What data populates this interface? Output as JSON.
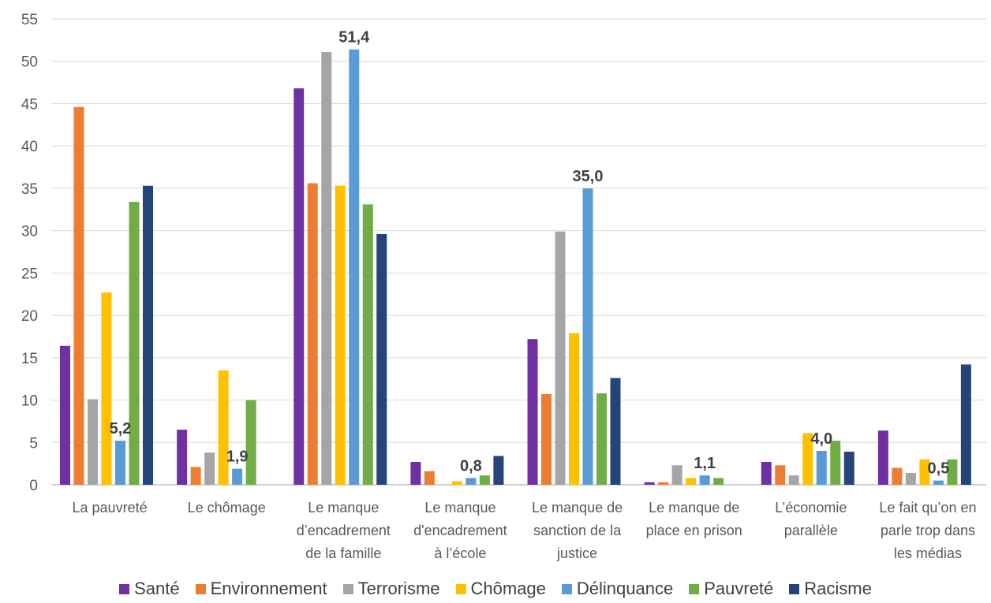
{
  "chart_data": {
    "type": "bar",
    "ylim": [
      0,
      55
    ],
    "yticks": [
      0,
      5,
      10,
      15,
      20,
      25,
      30,
      35,
      40,
      45,
      50,
      55
    ],
    "grid": true,
    "legend_position": "bottom",
    "categories": [
      [
        "La pauvreté"
      ],
      [
        "Le chômage"
      ],
      [
        "Le manque",
        "d’encadrement",
        "de la famille"
      ],
      [
        "Le manque",
        "d'encadrement",
        "à l’école"
      ],
      [
        "Le manque de",
        "sanction de la",
        "justice"
      ],
      [
        "Le manque de",
        "place en prison"
      ],
      [
        "L’économie",
        "parallèle"
      ],
      [
        "Le fait qu’on en",
        "parle trop dans",
        "les médias"
      ]
    ],
    "series": [
      {
        "name": "Santé",
        "color": "#7030A0",
        "values": [
          16.4,
          6.5,
          46.8,
          2.7,
          17.2,
          0.3,
          2.7,
          6.4
        ]
      },
      {
        "name": "Environnement",
        "color": "#ED7D31",
        "values": [
          44.6,
          2.1,
          35.6,
          1.6,
          10.7,
          0.3,
          2.3,
          2.0
        ]
      },
      {
        "name": "Terrorisme",
        "color": "#A5A5A5",
        "values": [
          10.1,
          3.8,
          51.1,
          0.0,
          29.9,
          2.3,
          1.1,
          1.4
        ]
      },
      {
        "name": "Chômage",
        "color": "#FFC000",
        "values": [
          22.7,
          13.5,
          35.3,
          0.4,
          17.9,
          0.8,
          6.1,
          3.0
        ]
      },
      {
        "name": "Délinquance",
        "color": "#5B9BD5",
        "values": [
          5.2,
          1.9,
          51.4,
          0.8,
          35.0,
          1.1,
          4.0,
          0.5
        ]
      },
      {
        "name": "Pauvreté",
        "color": "#70AD47",
        "values": [
          33.4,
          10.0,
          33.1,
          1.1,
          10.8,
          0.8,
          5.2,
          3.0
        ]
      },
      {
        "name": "Racisme",
        "color": "#264478",
        "values": [
          35.3,
          0.0,
          29.6,
          3.4,
          12.6,
          0.0,
          3.9,
          14.2
        ]
      }
    ],
    "data_labels": {
      "series": "Délinquance",
      "labels": [
        "5,2",
        "1,9",
        "51,4",
        "0,8",
        "35,0",
        "1,1",
        "4,0",
        "0,5"
      ]
    }
  }
}
